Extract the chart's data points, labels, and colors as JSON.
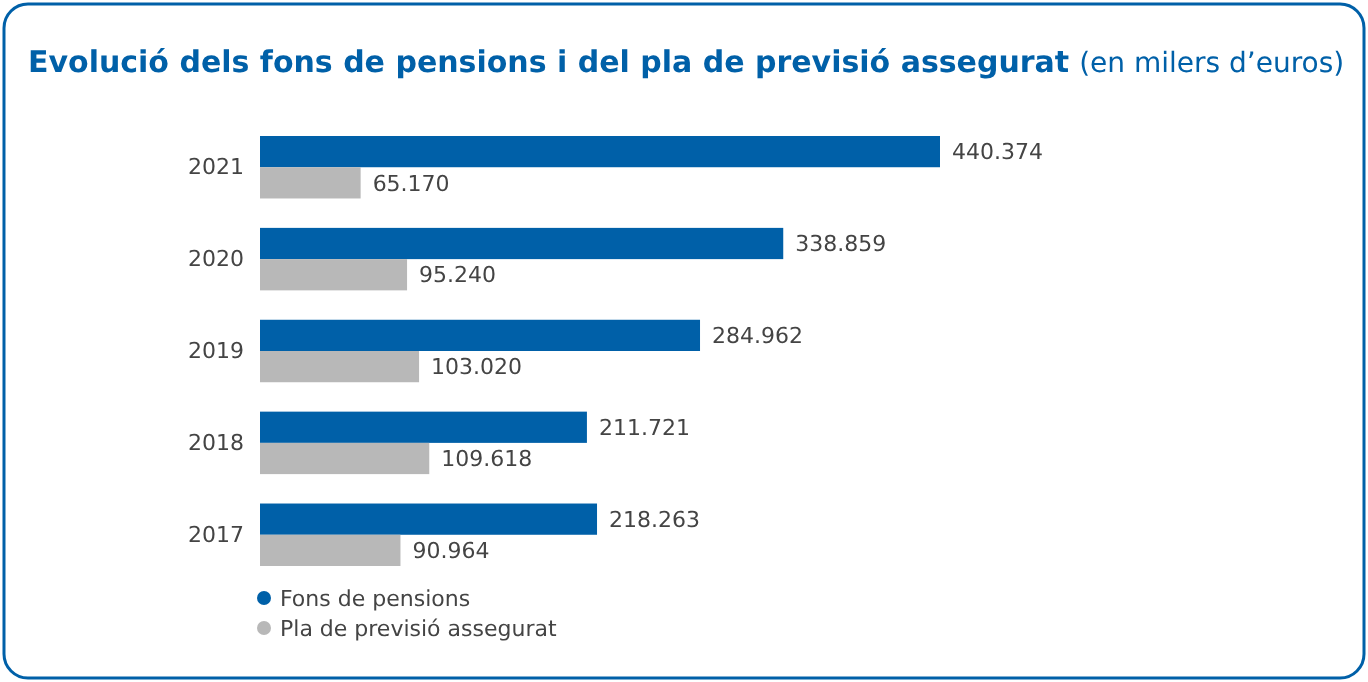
{
  "chart_data": {
    "type": "bar",
    "orientation": "horizontal",
    "title": "Evolució dels fons de pensions i del pla de previsió assegurat",
    "subtitle": "(en milers d’euros)",
    "categories": [
      "2021",
      "2020",
      "2019",
      "2018",
      "2017"
    ],
    "series": [
      {
        "name": "Fons de pensions",
        "color": "#0060a8",
        "values": [
          440374,
          338859,
          284962,
          211721,
          218263
        ],
        "value_labels": [
          "440.374",
          "338.859",
          "284.962",
          "211.721",
          "218.263"
        ]
      },
      {
        "name": "Pla de previsió assegurat",
        "color": "#b8b8b8",
        "values": [
          65170,
          95240,
          103020,
          109618,
          90964
        ],
        "value_labels": [
          "65.170",
          "95.240",
          "103.020",
          "109.618",
          "90.964"
        ]
      }
    ],
    "legend": "bottom left"
  }
}
